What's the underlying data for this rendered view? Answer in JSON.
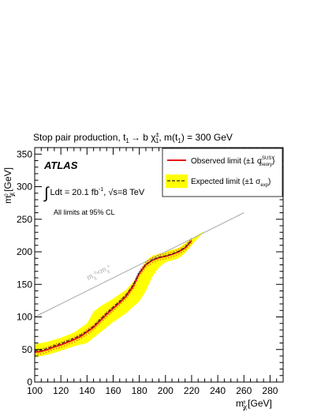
{
  "chart_data": {
    "type": "line",
    "title_parts": {
      "process": "Stop pair production, ",
      "stop": "t",
      "stop_sub": "1",
      "arrow": "→ b ",
      "chi": "χ",
      "chi_sup": "±",
      "chi_sub": "1",
      "mass_prefix": ", m(",
      "mass_stop": "t",
      "mass_stop_sub": "1",
      "mass_suffix": ") = 300 GeV"
    },
    "xlabel_parts": {
      "m": "m",
      "chi": "χ",
      "chi_sup": "±",
      "chi_sub": "1",
      "unit": " [GeV]"
    },
    "ylabel_parts": {
      "m": "m",
      "chi": "χ",
      "chi_sup": "0",
      "chi_sub": "1",
      "unit": " [GeV]"
    },
    "xlim": [
      100,
      290
    ],
    "ylim": [
      0,
      360
    ],
    "x_ticks": [
      100,
      120,
      140,
      160,
      180,
      200,
      220,
      240,
      260,
      280
    ],
    "y_ticks": [
      0,
      50,
      100,
      150,
      200,
      250,
      300,
      350
    ],
    "experiment": "ATLAS",
    "lumi_parts": {
      "integral": "∫",
      "ldt": "Ldt = 20.1 fb",
      "ldt_sup": "-1",
      "sep": ",  ",
      "sqrt": "√",
      "energy": "s=8 TeV"
    },
    "cl_note": "All limits at 95% CL",
    "kinematic_label_parts": {
      "m1": "m",
      "chi1_sub": "χ",
      "chi1_sup": "0",
      "lt": "<m",
      "chi2_sub": "χ",
      "chi2_sup": "±"
    },
    "legend": {
      "position": "top-right",
      "observed": {
        "text": "Observed limit (±1 σ",
        "sup": "SUSY",
        "sub": "theory",
        "close": ")"
      },
      "expected": {
        "text": "Expected limit (±1 σ",
        "sub": "exp",
        "close": ")"
      }
    },
    "colors": {
      "observed": "#e8141a",
      "expected_line": "#2a2a2a",
      "band": "#ffff00",
      "kinematic_line": "#a9a9a9"
    },
    "series": [
      {
        "name": "Observed limit",
        "x": [
          100,
          105,
          110,
          115,
          120,
          125,
          130,
          135,
          140,
          145,
          150,
          155,
          160,
          165,
          170,
          175,
          180,
          185,
          190,
          195,
          200,
          205,
          210,
          215,
          220
        ],
        "y": [
          46,
          47,
          50,
          54,
          57,
          61,
          65,
          70,
          77,
          84,
          94,
          104,
          113,
          122,
          132,
          146,
          167,
          180,
          187,
          191,
          193,
          196,
          200,
          206,
          217
        ]
      },
      {
        "name": "Expected limit",
        "x": [
          100,
          105,
          110,
          115,
          120,
          125,
          130,
          135,
          140,
          145,
          150,
          155,
          160,
          165,
          170,
          175,
          180,
          185,
          190,
          195,
          200,
          205,
          210,
          215,
          220
        ],
        "y": [
          48,
          49,
          52,
          56,
          59,
          63,
          67,
          72,
          78,
          86,
          96,
          106,
          115,
          124,
          134,
          148,
          168,
          181,
          188,
          192,
          194,
          197,
          201,
          207,
          218
        ]
      },
      {
        "name": "Expected band upper",
        "x": [
          100,
          110,
          120,
          130,
          140,
          145,
          150,
          160,
          170,
          178,
          185,
          190,
          200,
          210,
          220,
          230
        ],
        "y": [
          58,
          62,
          68,
          76,
          90,
          108,
          116,
          128,
          142,
          160,
          186,
          194,
          200,
          206,
          220,
          232
        ]
      },
      {
        "name": "Expected band lower",
        "x": [
          100,
          110,
          120,
          130,
          140,
          150,
          160,
          170,
          180,
          185,
          190,
          195,
          200,
          210,
          215,
          220
        ],
        "y": [
          38,
          42,
          48,
          55,
          60,
          76,
          92,
          106,
          124,
          140,
          162,
          176,
          184,
          190,
          198,
          210
        ]
      },
      {
        "name": "kinematic limit",
        "x": [
          100,
          260
        ],
        "y": [
          100,
          260
        ]
      }
    ]
  }
}
